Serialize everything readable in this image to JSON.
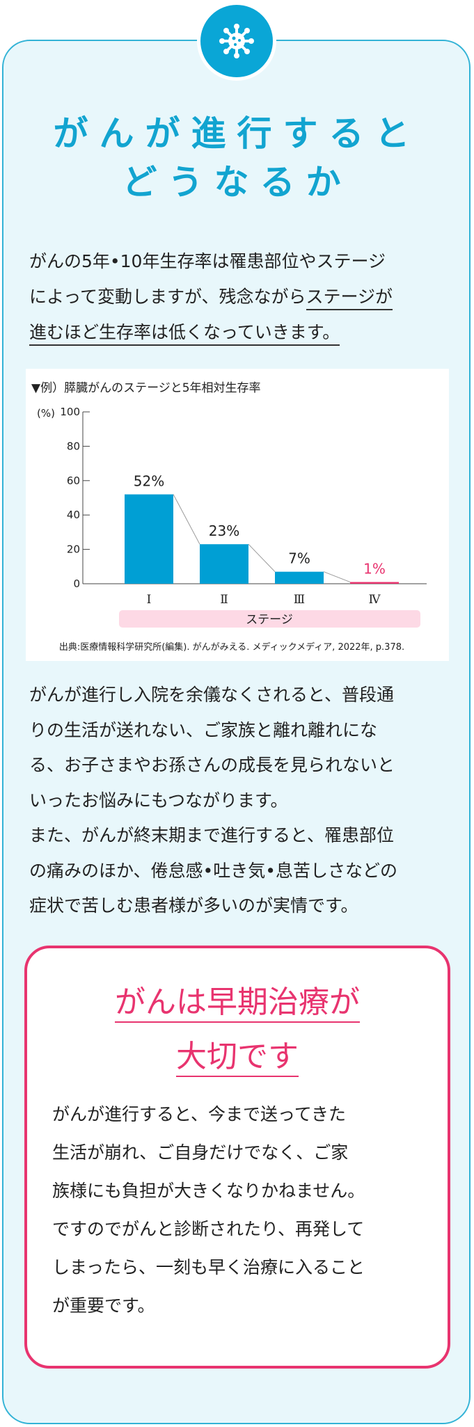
{
  "icons": {
    "badge": "virus-icon"
  },
  "colors": {
    "accent": "#12a4d0",
    "bar": "#009fd4",
    "highlight": "#e8346f",
    "stage_band": "#fdd9e5"
  },
  "title": {
    "line1": "がんが進行すると",
    "line2": "どうなるか"
  },
  "intro": {
    "line1": "がんの5年•10年生存率は罹患部位やステージ",
    "line2_plain": "によって変動しますが、残念ながら",
    "line2_underline": "ステージが",
    "line3_underline": "進むほど生存率は低くなっていきます。"
  },
  "chart_data": {
    "type": "bar",
    "title": "▼例）膵臓がんのステージと5年相対生存率",
    "ylabel": "(%)",
    "xlabel": "ステージ",
    "categories": [
      "Ⅰ",
      "Ⅱ",
      "Ⅲ",
      "Ⅳ"
    ],
    "values": [
      52,
      23,
      7,
      1
    ],
    "value_labels": [
      "52%",
      "23%",
      "7%",
      "1%"
    ],
    "yticks": [
      "0",
      "20",
      "40",
      "60",
      "80",
      "100"
    ],
    "ylim": [
      0,
      100
    ],
    "connector_line": true,
    "source": "出典:医療情報科学研究所(編集). がんがみえる. メディックメディア, 2022年, p.378."
  },
  "body2": [
    "がんが進行し入院を余儀なくされると、普段通",
    "りの生活が送れない、ご家族と離れ離れにな",
    "る、お子さまやお孫さんの成長を見られないと",
    "いったお悩みにもつながります。",
    "また、がんが終末期まで進行すると、罹患部位",
    "の痛みのほか、倦怠感•吐き気•息苦しさなどの",
    "症状で苦しむ患者様が多いのが実情です。"
  ],
  "point": {
    "title1": "がんは早期治療が",
    "title2": "大切です",
    "body": [
      "がんが進行すると、今まで送ってきた",
      "生活が崩れ、ご自身だけでなく、ご家",
      "族様にも負担が大きくなりかねません。",
      "ですのでがんと診断されたり、再発して",
      "しまったら、一刻も早く治療に入ること",
      "が重要です。"
    ]
  }
}
